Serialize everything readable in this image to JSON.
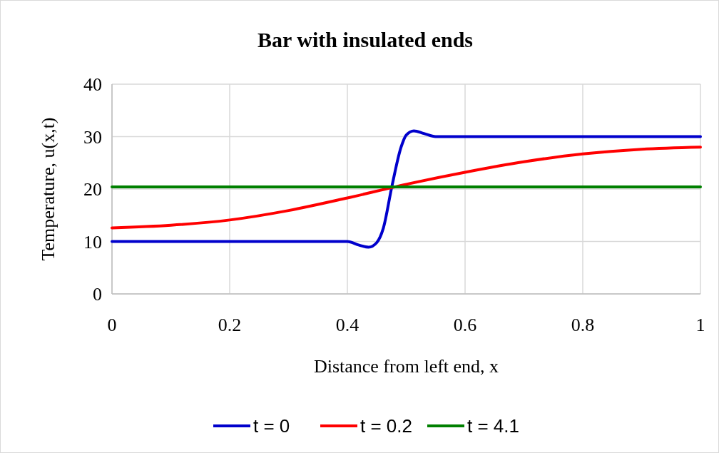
{
  "chart_data": {
    "type": "line",
    "title": "Bar with insulated ends",
    "xlabel": "Distance from left end, x",
    "ylabel": "Temperature, u(x,t)",
    "xlim": [
      0,
      1
    ],
    "xticks": [
      0,
      0.2,
      0.4,
      0.6,
      0.8,
      1
    ],
    "ylim": [
      0,
      40
    ],
    "yticks": [
      0,
      10,
      20,
      30,
      40
    ],
    "grid": true,
    "legend": "bottom",
    "series": [
      {
        "name": "t = 0",
        "color": "#0000cc",
        "x": [
          0,
          0.4,
          0.42,
          0.436,
          0.45,
          0.461,
          0.476,
          0.491,
          0.5,
          0.513,
          0.53,
          0.55,
          1
        ],
        "values": [
          10,
          10,
          9.3,
          8.9,
          9.8,
          12.5,
          20.7,
          27.9,
          30.3,
          31.1,
          30.6,
          30,
          30
        ]
      },
      {
        "name": "t = 0.2",
        "color": "#ff0000",
        "x": [
          0,
          0.1,
          0.2,
          0.3,
          0.4,
          0.5,
          0.6,
          0.7,
          0.8,
          0.9,
          1
        ],
        "values": [
          12.6,
          13.1,
          14.1,
          15.9,
          18.3,
          20.9,
          23.2,
          25.2,
          26.7,
          27.6,
          28
        ]
      },
      {
        "name": "t = 4.1",
        "color": "#008000",
        "x": [
          0,
          1
        ],
        "values": [
          20.4,
          20.4
        ]
      }
    ]
  }
}
